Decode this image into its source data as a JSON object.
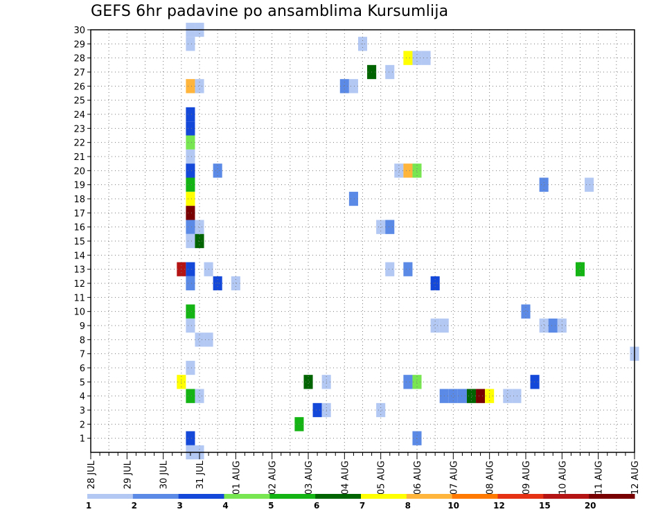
{
  "chart_data": {
    "type": "heatmap",
    "title": "GEFS 6hr padavine po ansamblima Kursumlija",
    "xlabel": "",
    "ylabel": "",
    "x_tick_labels": [
      "28 JUL",
      "29 JUL",
      "30 JUL",
      "31 JUL",
      "01 AUG",
      "02 AUG",
      "03 AUG",
      "04 AUG",
      "05 AUG",
      "06 AUG",
      "07 AUG",
      "08 AUG",
      "09 AUG",
      "10 AUG",
      "11 AUG",
      "12 AUG"
    ],
    "y_tick_labels": [
      "1",
      "2",
      "3",
      "4",
      "5",
      "6",
      "7",
      "8",
      "9",
      "10",
      "11",
      "12",
      "13",
      "14",
      "15",
      "16",
      "17",
      "18",
      "19",
      "20",
      "21",
      "22",
      "23",
      "24",
      "25",
      "26",
      "27",
      "28",
      "29",
      "30"
    ],
    "xlim_steps": [
      0,
      60
    ],
    "ylim": [
      0,
      30
    ],
    "grid": true,
    "colorbar": {
      "labels": [
        "1",
        "2",
        "3",
        "4",
        "5",
        "6",
        "7",
        "8",
        "10",
        "12",
        "15",
        "20"
      ],
      "colors": [
        "#b4c8f4",
        "#5a8ae6",
        "#1448d8",
        "#78e650",
        "#14b414",
        "#006400",
        "#ffff00",
        "#ffb43c",
        "#ff7800",
        "#e63214",
        "#b41414",
        "#780000"
      ]
    },
    "units_note": "x = forecast step index (6-hour steps from 28 JUL 00Z), y = ensemble member",
    "cells": [
      [
        11,
        30,
        1
      ],
      [
        12,
        30,
        1
      ],
      [
        11,
        29,
        1
      ],
      [
        30,
        29,
        1
      ],
      [
        35,
        28,
        7
      ],
      [
        36,
        28,
        1
      ],
      [
        37,
        28,
        1
      ],
      [
        31,
        27,
        6
      ],
      [
        33,
        27,
        1
      ],
      [
        11,
        26,
        8
      ],
      [
        12,
        26,
        1
      ],
      [
        28,
        26,
        2
      ],
      [
        29,
        26,
        1
      ],
      [
        11,
        24,
        3
      ],
      [
        11,
        23,
        3
      ],
      [
        11,
        22,
        4
      ],
      [
        11,
        21,
        1
      ],
      [
        11,
        20,
        3
      ],
      [
        14,
        20,
        2
      ],
      [
        34,
        20,
        1
      ],
      [
        35,
        20,
        8
      ],
      [
        36,
        20,
        4
      ],
      [
        11,
        19,
        5
      ],
      [
        50,
        19,
        2
      ],
      [
        55,
        19,
        1
      ],
      [
        11,
        18,
        7
      ],
      [
        29,
        18,
        2
      ],
      [
        11,
        17,
        20
      ],
      [
        11,
        16,
        2
      ],
      [
        12,
        16,
        1
      ],
      [
        32,
        16,
        1
      ],
      [
        33,
        16,
        2
      ],
      [
        11,
        15,
        1
      ],
      [
        12,
        15,
        6
      ],
      [
        10,
        13,
        15
      ],
      [
        11,
        13,
        3
      ],
      [
        13,
        13,
        1
      ],
      [
        33,
        13,
        1
      ],
      [
        35,
        13,
        2
      ],
      [
        54,
        13,
        5
      ],
      [
        11,
        12,
        2
      ],
      [
        14,
        12,
        3
      ],
      [
        16,
        12,
        1
      ],
      [
        38,
        12,
        3
      ],
      [
        11,
        10,
        5
      ],
      [
        48,
        10,
        2
      ],
      [
        11,
        9,
        1
      ],
      [
        38,
        9,
        1
      ],
      [
        39,
        9,
        1
      ],
      [
        50,
        9,
        1
      ],
      [
        51,
        9,
        2
      ],
      [
        52,
        9,
        1
      ],
      [
        12,
        8,
        1
      ],
      [
        13,
        8,
        1
      ],
      [
        60,
        7,
        1
      ],
      [
        11,
        6,
        1
      ],
      [
        10,
        5,
        7
      ],
      [
        24,
        5,
        6
      ],
      [
        26,
        5,
        1
      ],
      [
        35,
        5,
        2
      ],
      [
        36,
        5,
        4
      ],
      [
        49,
        5,
        3
      ],
      [
        11,
        4,
        5
      ],
      [
        12,
        4,
        1
      ],
      [
        39,
        4,
        2
      ],
      [
        40,
        4,
        2
      ],
      [
        41,
        4,
        2
      ],
      [
        42,
        4,
        6
      ],
      [
        43,
        4,
        20
      ],
      [
        44,
        4,
        7
      ],
      [
        46,
        4,
        1
      ],
      [
        47,
        4,
        1
      ],
      [
        25,
        3,
        3
      ],
      [
        26,
        3,
        1
      ],
      [
        32,
        3,
        1
      ],
      [
        23,
        2,
        5
      ],
      [
        11,
        1,
        3
      ],
      [
        36,
        1,
        2
      ],
      [
        11,
        0,
        1
      ],
      [
        12,
        0,
        1
      ]
    ]
  }
}
